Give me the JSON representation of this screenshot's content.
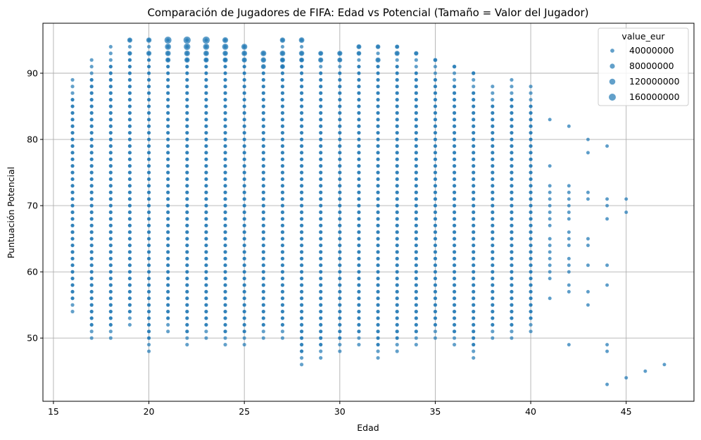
{
  "chart_data": {
    "type": "scatter",
    "title": "Comparación de Jugadores de FIFA: Edad vs Potencial (Tamaño = Valor del Jugador)",
    "xlabel": "Edad",
    "ylabel": "Puntuación Potencial",
    "xlim": [
      14.45,
      48.55
    ],
    "ylim": [
      40.45,
      97.55
    ],
    "xticks": [
      15,
      20,
      25,
      30,
      35,
      40,
      45
    ],
    "yticks": [
      50,
      60,
      70,
      80,
      90
    ],
    "grid": true,
    "point_color": "#1f77b4",
    "legend": {
      "title": "value_eur",
      "placement": "upper right",
      "entries": [
        "40000000",
        "80000000",
        "120000000",
        "160000000"
      ]
    },
    "age_potential_range": [
      {
        "x": 16,
        "y_min": 54,
        "y_max": 89
      },
      {
        "x": 17,
        "y_min": 50,
        "y_max": 92
      },
      {
        "x": 18,
        "y_min": 50,
        "y_max": 94
      },
      {
        "x": 19,
        "y_min": 52,
        "y_max": 95
      },
      {
        "x": 20,
        "y_min": 48,
        "y_max": 95
      },
      {
        "x": 21,
        "y_min": 51,
        "y_max": 95
      },
      {
        "x": 22,
        "y_min": 49,
        "y_max": 95
      },
      {
        "x": 23,
        "y_min": 50,
        "y_max": 95
      },
      {
        "x": 24,
        "y_min": 49,
        "y_max": 95
      },
      {
        "x": 25,
        "y_min": 49,
        "y_max": 94
      },
      {
        "x": 26,
        "y_min": 50,
        "y_max": 93
      },
      {
        "x": 27,
        "y_min": 50,
        "y_max": 95
      },
      {
        "x": 28,
        "y_min": 46,
        "y_max": 95
      },
      {
        "x": 29,
        "y_min": 47,
        "y_max": 93
      },
      {
        "x": 30,
        "y_min": 48,
        "y_max": 93
      },
      {
        "x": 31,
        "y_min": 49,
        "y_max": 94
      },
      {
        "x": 32,
        "y_min": 47,
        "y_max": 94
      },
      {
        "x": 33,
        "y_min": 48,
        "y_max": 94
      },
      {
        "x": 34,
        "y_min": 49,
        "y_max": 93
      },
      {
        "x": 35,
        "y_min": 50,
        "y_max": 92
      },
      {
        "x": 36,
        "y_min": 49,
        "y_max": 91
      },
      {
        "x": 37,
        "y_min": 47,
        "y_max": 90
      },
      {
        "x": 38,
        "y_min": 50,
        "y_max": 88
      },
      {
        "x": 39,
        "y_min": 50,
        "y_max": 89
      },
      {
        "x": 40,
        "y_min": 51,
        "y_max": 88
      }
    ],
    "sparse_points": [
      {
        "x": 41,
        "y": 83
      },
      {
        "x": 41,
        "y": 76
      },
      {
        "x": 41,
        "y": 73
      },
      {
        "x": 41,
        "y": 72
      },
      {
        "x": 41,
        "y": 71
      },
      {
        "x": 41,
        "y": 70
      },
      {
        "x": 41,
        "y": 69
      },
      {
        "x": 41,
        "y": 68
      },
      {
        "x": 41,
        "y": 67
      },
      {
        "x": 41,
        "y": 65
      },
      {
        "x": 41,
        "y": 64
      },
      {
        "x": 41,
        "y": 63
      },
      {
        "x": 41,
        "y": 62
      },
      {
        "x": 41,
        "y": 61
      },
      {
        "x": 41,
        "y": 60
      },
      {
        "x": 41,
        "y": 59
      },
      {
        "x": 41,
        "y": 56
      },
      {
        "x": 42,
        "y": 82
      },
      {
        "x": 42,
        "y": 73
      },
      {
        "x": 42,
        "y": 72
      },
      {
        "x": 42,
        "y": 71
      },
      {
        "x": 42,
        "y": 70
      },
      {
        "x": 42,
        "y": 69
      },
      {
        "x": 42,
        "y": 68
      },
      {
        "x": 42,
        "y": 66
      },
      {
        "x": 42,
        "y": 65
      },
      {
        "x": 42,
        "y": 64
      },
      {
        "x": 42,
        "y": 62
      },
      {
        "x": 42,
        "y": 61
      },
      {
        "x": 42,
        "y": 60
      },
      {
        "x": 42,
        "y": 58
      },
      {
        "x": 42,
        "y": 57
      },
      {
        "x": 42,
        "y": 49
      },
      {
        "x": 43,
        "y": 80
      },
      {
        "x": 43,
        "y": 78
      },
      {
        "x": 43,
        "y": 72
      },
      {
        "x": 43,
        "y": 71
      },
      {
        "x": 43,
        "y": 65
      },
      {
        "x": 43,
        "y": 64
      },
      {
        "x": 43,
        "y": 61
      },
      {
        "x": 43,
        "y": 57
      },
      {
        "x": 43,
        "y": 55
      },
      {
        "x": 44,
        "y": 79
      },
      {
        "x": 44,
        "y": 71
      },
      {
        "x": 44,
        "y": 70
      },
      {
        "x": 44,
        "y": 68
      },
      {
        "x": 44,
        "y": 61
      },
      {
        "x": 44,
        "y": 58
      },
      {
        "x": 44,
        "y": 49
      },
      {
        "x": 44,
        "y": 48
      },
      {
        "x": 44,
        "y": 43
      },
      {
        "x": 45,
        "y": 71
      },
      {
        "x": 45,
        "y": 69
      },
      {
        "x": 45,
        "y": 44
      },
      {
        "x": 46,
        "y": 45
      },
      {
        "x": 47,
        "y": 46
      }
    ],
    "high_value_points": [
      {
        "x": 19,
        "y": 95,
        "value_eur": 90000000
      },
      {
        "x": 19,
        "y": 93,
        "value_eur": 60000000
      },
      {
        "x": 20,
        "y": 95,
        "value_eur": 100000000
      },
      {
        "x": 20,
        "y": 93,
        "value_eur": 90000000
      },
      {
        "x": 21,
        "y": 95,
        "value_eur": 180000000
      },
      {
        "x": 21,
        "y": 94,
        "value_eur": 140000000
      },
      {
        "x": 21,
        "y": 93,
        "value_eur": 110000000
      },
      {
        "x": 21,
        "y": 92,
        "value_eur": 90000000
      },
      {
        "x": 22,
        "y": 95,
        "value_eur": 190000000
      },
      {
        "x": 22,
        "y": 94,
        "value_eur": 160000000
      },
      {
        "x": 22,
        "y": 93,
        "value_eur": 120000000
      },
      {
        "x": 22,
        "y": 92,
        "value_eur": 100000000
      },
      {
        "x": 23,
        "y": 95,
        "value_eur": 190000000
      },
      {
        "x": 23,
        "y": 94,
        "value_eur": 140000000
      },
      {
        "x": 23,
        "y": 93,
        "value_eur": 110000000
      },
      {
        "x": 23,
        "y": 92,
        "value_eur": 90000000
      },
      {
        "x": 24,
        "y": 95,
        "value_eur": 120000000
      },
      {
        "x": 24,
        "y": 94,
        "value_eur": 140000000
      },
      {
        "x": 24,
        "y": 93,
        "value_eur": 100000000
      },
      {
        "x": 24,
        "y": 92,
        "value_eur": 90000000
      },
      {
        "x": 25,
        "y": 94,
        "value_eur": 130000000
      },
      {
        "x": 25,
        "y": 93,
        "value_eur": 110000000
      },
      {
        "x": 25,
        "y": 92,
        "value_eur": 90000000
      },
      {
        "x": 26,
        "y": 93,
        "value_eur": 120000000
      },
      {
        "x": 26,
        "y": 92,
        "value_eur": 100000000
      },
      {
        "x": 26,
        "y": 91,
        "value_eur": 80000000
      },
      {
        "x": 27,
        "y": 95,
        "value_eur": 100000000
      },
      {
        "x": 27,
        "y": 93,
        "value_eur": 110000000
      },
      {
        "x": 27,
        "y": 92,
        "value_eur": 90000000
      },
      {
        "x": 27,
        "y": 91,
        "value_eur": 80000000
      },
      {
        "x": 28,
        "y": 95,
        "value_eur": 110000000
      },
      {
        "x": 28,
        "y": 93,
        "value_eur": 100000000
      },
      {
        "x": 28,
        "y": 92,
        "value_eur": 80000000
      },
      {
        "x": 29,
        "y": 93,
        "value_eur": 80000000
      },
      {
        "x": 29,
        "y": 92,
        "value_eur": 90000000
      },
      {
        "x": 30,
        "y": 93,
        "value_eur": 90000000
      },
      {
        "x": 30,
        "y": 92,
        "value_eur": 80000000
      },
      {
        "x": 31,
        "y": 94,
        "value_eur": 80000000
      },
      {
        "x": 31,
        "y": 93,
        "value_eur": 70000000
      },
      {
        "x": 32,
        "y": 94,
        "value_eur": 70000000
      },
      {
        "x": 32,
        "y": 92,
        "value_eur": 90000000
      },
      {
        "x": 33,
        "y": 94,
        "value_eur": 50000000
      },
      {
        "x": 33,
        "y": 93,
        "value_eur": 90000000
      },
      {
        "x": 34,
        "y": 93,
        "value_eur": 60000000
      },
      {
        "x": 35,
        "y": 92,
        "value_eur": 40000000
      },
      {
        "x": 36,
        "y": 91,
        "value_eur": 30000000
      },
      {
        "x": 37,
        "y": 90,
        "value_eur": 30000000
      }
    ]
  }
}
